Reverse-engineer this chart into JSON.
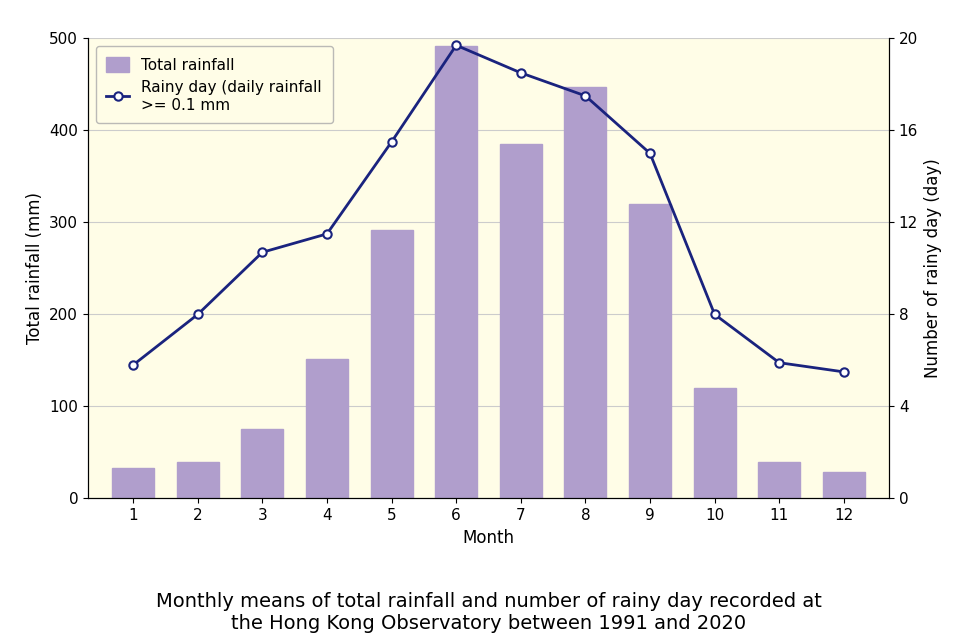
{
  "months": [
    1,
    2,
    3,
    4,
    5,
    6,
    7,
    8,
    9,
    10,
    11,
    12
  ],
  "month_labels": [
    "1",
    "2",
    "3",
    "4",
    "5",
    "6",
    "7",
    "8",
    "9",
    "10",
    "11",
    "12"
  ],
  "rainfall_mm": [
    33,
    40,
    75,
    152,
    292,
    492,
    385,
    447,
    320,
    120,
    40,
    29
  ],
  "rainy_days": [
    5.8,
    8.0,
    10.7,
    11.5,
    15.5,
    19.7,
    18.5,
    17.5,
    15.0,
    8.0,
    5.9,
    5.5
  ],
  "bar_color": "#b09ecc",
  "bar_edgecolor": "#b09ecc",
  "line_color": "#1a237e",
  "marker_color": "#ffffff",
  "marker_edgecolor": "#1a237e",
  "background_color": "#fffde7",
  "fig_background": "#ffffff",
  "ylabel_left": "Total rainfall (mm)",
  "ylabel_right": "Number of rainy day (day)",
  "xlabel": "Month",
  "title_line1": "Monthly means of total rainfall and number of rainy day recorded at",
  "title_line2": "the Hong Kong Observatory between 1991 and 2020",
  "legend_rainfall": "Total rainfall",
  "legend_rainy_line1": "Rainy day (daily rainfall",
  "legend_rainy_line2": ">= 0.1 mm",
  "ylim_left": [
    0,
    500
  ],
  "ylim_right": [
    0,
    20
  ],
  "yticks_left": [
    0,
    100,
    200,
    300,
    400,
    500
  ],
  "yticks_right": [
    0,
    4,
    8,
    12,
    16,
    20
  ],
  "title_fontsize": 14,
  "axis_label_fontsize": 12,
  "tick_fontsize": 11,
  "legend_fontsize": 11,
  "bar_width": 0.65,
  "xlim": [
    0.3,
    12.7
  ]
}
